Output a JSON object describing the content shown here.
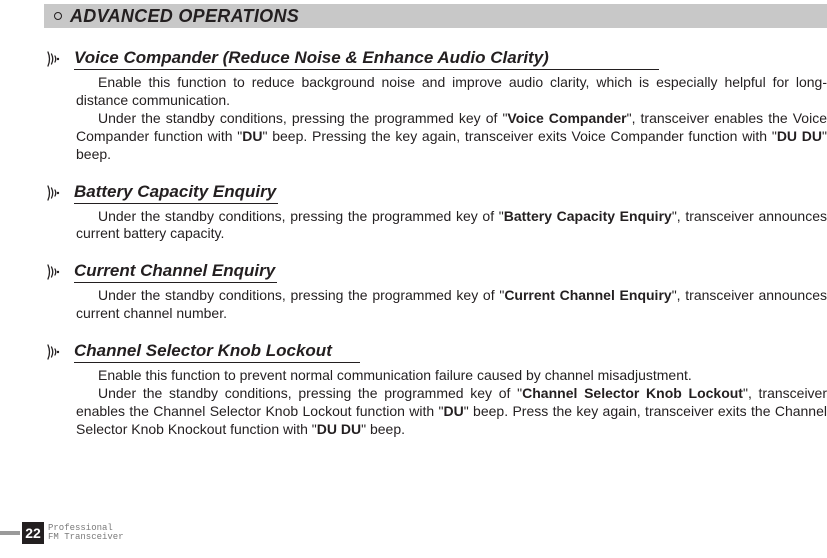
{
  "header": {
    "title": "ADVANCED OPERATIONS"
  },
  "sections": [
    {
      "title": "Voice Compander (Reduce Noise & Enhance Audio Clarity)",
      "titleClass": "wide",
      "paras": [
        "<span class='ind'></span>Enable this function to reduce background noise and improve audio clarity, which is especially helpful for long-distance communication.",
        "<span class='ind'></span>Under the standby conditions, pressing the programmed key of \"<b>Voice Compander</b>\", transceiver enables the Voice Compander function with \"<b>DU</b>\" beep. Pressing the key again, transceiver exits Voice Compander function with \"<b>DU DU</b>\" beep."
      ]
    },
    {
      "title": "Battery Capacity Enquiry",
      "titleClass": "pad1",
      "paras": [
        "<span class='ind'></span>Under the standby conditions, pressing the programmed key of \"<b>Battery Capacity Enquiry</b>\", transceiver announces current battery capacity."
      ]
    },
    {
      "title": "Current Channel Enquiry",
      "titleClass": "pad1",
      "paras": [
        "<span class='ind'></span>Under the standby conditions, pressing the programmed key of \"<b>Current Channel Enquiry</b>\", transceiver announces current channel number."
      ]
    },
    {
      "title": "Channel Selector Knob Lockout",
      "titleClass": "pad2",
      "paras": [
        "<span class='ind'></span>Enable this function to prevent normal communication failure caused by channel misadjustment.",
        "<span class='ind'></span>Under the standby conditions, pressing the programmed key of \"<b>Channel Selector Knob Lockout</b>\", transceiver enables the Channel Selector Knob Lockout function with \"<b>DU</b>\" beep. Press the key again, transceiver exits the Channel Selector Knob Knockout function with \"<b>DU DU</b>\" beep."
      ]
    }
  ],
  "footer": {
    "page": "22",
    "line1": "Professional",
    "line2": "FM Transceiver"
  },
  "colors": {
    "headerBg": "#c8c8c8",
    "text": "#231f20",
    "footerBar": "#9a9a9a",
    "footerText": "#7a7a7a"
  }
}
